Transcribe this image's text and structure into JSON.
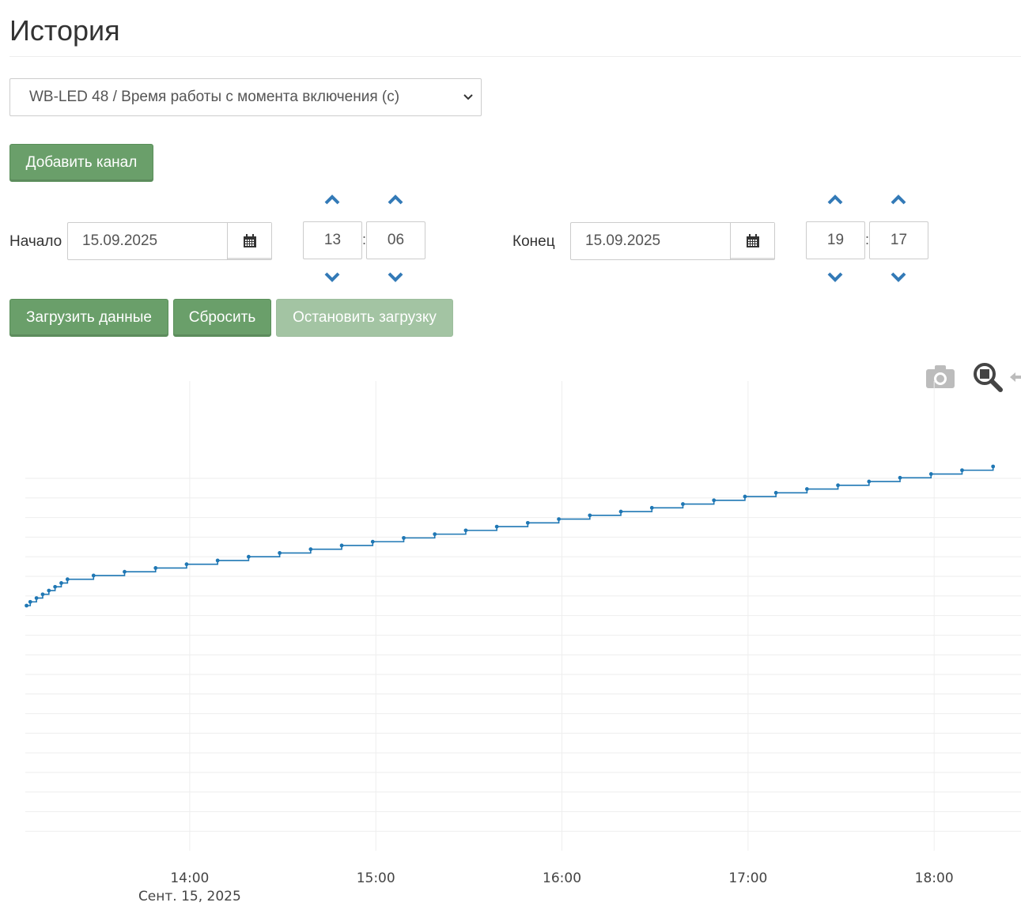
{
  "page": {
    "title": "История"
  },
  "channel_select": {
    "selected": "WB-LED 48 / Время работы с момента включения (с)"
  },
  "buttons": {
    "add_channel": "Добавить канал",
    "load_data": "Загрузить данные",
    "reset": "Сбросить",
    "stop_loading": "Остановить загрузку"
  },
  "range": {
    "start": {
      "label": "Начало",
      "date": "15.09.2025",
      "hour": "13",
      "minute": "06"
    },
    "end": {
      "label": "Конец",
      "date": "15.09.2025",
      "hour": "19",
      "minute": "17"
    },
    "separator": ":"
  },
  "icons": {
    "calendar": "calendar-icon",
    "time_up": "chevron-up-icon",
    "time_down": "chevron-down-icon",
    "camera": "camera-icon",
    "zoom": "zoom-icon",
    "pan": "pan-icon"
  },
  "colors": {
    "accent_green": "#6a9f6a",
    "arrow_blue": "#337ab7",
    "series_line": "#1f77b4",
    "grid": "#eeeeee"
  },
  "chart_data": {
    "type": "line",
    "line_shape": "step",
    "title": "",
    "xlabel": "",
    "ylabel": "",
    "x_ticks": [
      "14:00",
      "15:00",
      "16:00",
      "17:00",
      "18:00"
    ],
    "x_tick_values_min": [
      840,
      900,
      960,
      1020,
      1080
    ],
    "x_date_label": "Сент. 15, 2025",
    "xlim_min": [
      787,
      1108
    ],
    "grid": true,
    "y_tick_labels_visible": false,
    "series": [
      {
        "x_min": [
          787.4,
          788.6,
          790.6,
          792.6,
          794.6,
          796.6,
          798.6,
          800.6,
          809.0,
          819.0,
          829.0,
          839.0,
          849.0,
          859.0,
          869.0,
          879.0,
          889.0,
          899.0,
          909.0,
          919.0,
          929.0,
          939.0,
          949.0,
          959.0,
          969.0,
          979.0,
          989.0,
          999.0,
          1009.0,
          1019.0,
          1029.0,
          1039.0,
          1049.0,
          1059.0,
          1069.0,
          1079.0,
          1089.0,
          1099.0
        ],
        "y_rel": [
          0.0,
          0.01,
          0.02,
          0.03,
          0.04,
          0.05,
          0.06,
          0.07,
          0.08,
          0.09,
          0.1,
          0.11,
          0.12,
          0.13,
          0.14,
          0.15,
          0.16,
          0.17,
          0.18,
          0.19,
          0.2,
          0.21,
          0.22,
          0.23,
          0.24,
          0.25,
          0.26,
          0.27,
          0.28,
          0.29,
          0.3,
          0.31,
          0.32,
          0.33,
          0.34,
          0.35,
          0.36,
          0.37
        ]
      }
    ]
  }
}
